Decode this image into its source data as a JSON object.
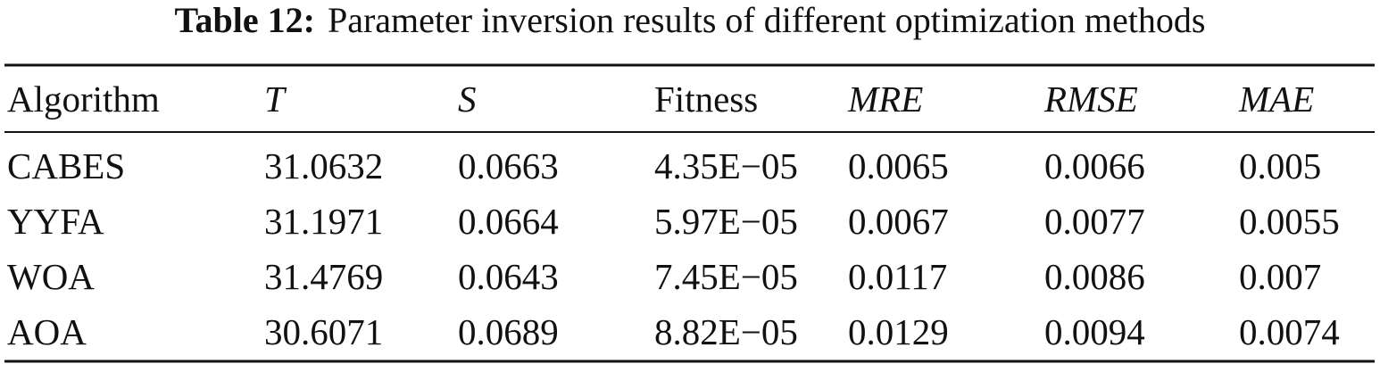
{
  "caption": {
    "label": "Table 12:",
    "text": "Parameter inversion results of different optimization methods"
  },
  "table": {
    "header": [
      "Algorithm",
      "T",
      "S",
      "Fitness",
      "MRE",
      "RMSE",
      "MAE"
    ],
    "rows": [
      [
        "CABES",
        "31.0632",
        "0.0663",
        "4.35E−05",
        "0.0065",
        "0.0066",
        "0.005"
      ],
      [
        "YYFA",
        "31.1971",
        "0.0664",
        "5.97E−05",
        "0.0067",
        "0.0077",
        "0.0055"
      ],
      [
        "WOA",
        "31.4769",
        "0.0643",
        "7.45E−05",
        "0.0117",
        "0.0086",
        "0.007"
      ],
      [
        "AOA",
        "30.6071",
        "0.0689",
        "8.82E−05",
        "0.0129",
        "0.0094",
        "0.0074"
      ]
    ]
  }
}
